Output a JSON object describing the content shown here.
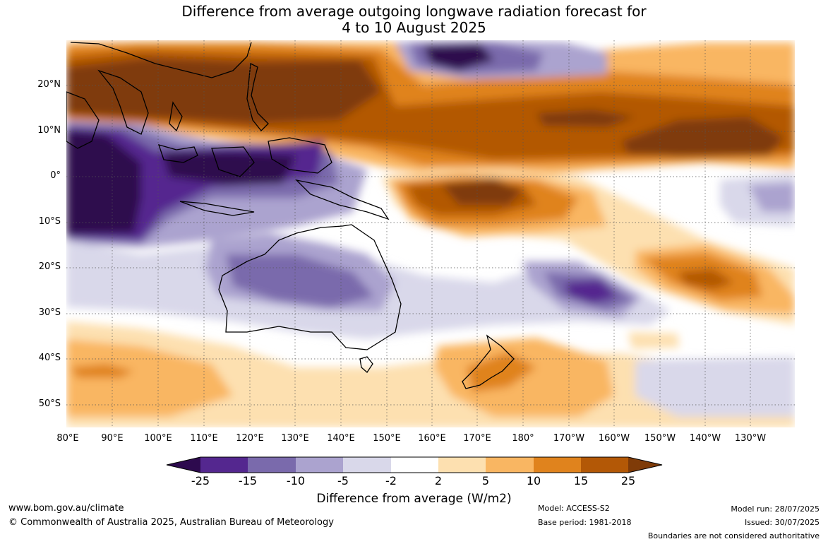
{
  "title_line1": "Difference from average outgoing longwave radiation forecast for",
  "title_line2": "4 to 10 August 2025",
  "lat_labels": [
    "20°N",
    "10°N",
    "0°",
    "10°S",
    "20°S",
    "30°S",
    "40°S",
    "50°S"
  ],
  "lon_labels": [
    "80°E",
    "90°E",
    "100°E",
    "110°E",
    "120°E",
    "130°E",
    "140°E",
    "150°E",
    "160°E",
    "170°E",
    "180°",
    "170°W",
    "160°W",
    "150°W",
    "140°W",
    "130°W"
  ],
  "colorbar": {
    "labels": [
      "-25",
      "-15",
      "-10",
      "-5",
      "-2",
      "2",
      "5",
      "10",
      "15",
      "25"
    ],
    "colors": [
      "#2d0a4e",
      "#54278f",
      "#7a6aac",
      "#aba3cf",
      "#d9d8ea",
      "#ffffff",
      "#fde0b0",
      "#f9b662",
      "#e0831d",
      "#b35806",
      "#7f3b08"
    ],
    "title": "Difference from average (W/m2)"
  },
  "footer": {
    "website": "www.bom.gov.au/climate",
    "copyright": "© Commonwealth of Australia 2025, Australian Bureau of Meteorology",
    "model": "Model: ACCESS-S2",
    "base_period": "Base period: 1981-2018",
    "model_run": "Model run: 28/07/2025",
    "issued": "Issued: 30/07/2025",
    "disclaimer": "Boundaries are not considered authoritative"
  }
}
